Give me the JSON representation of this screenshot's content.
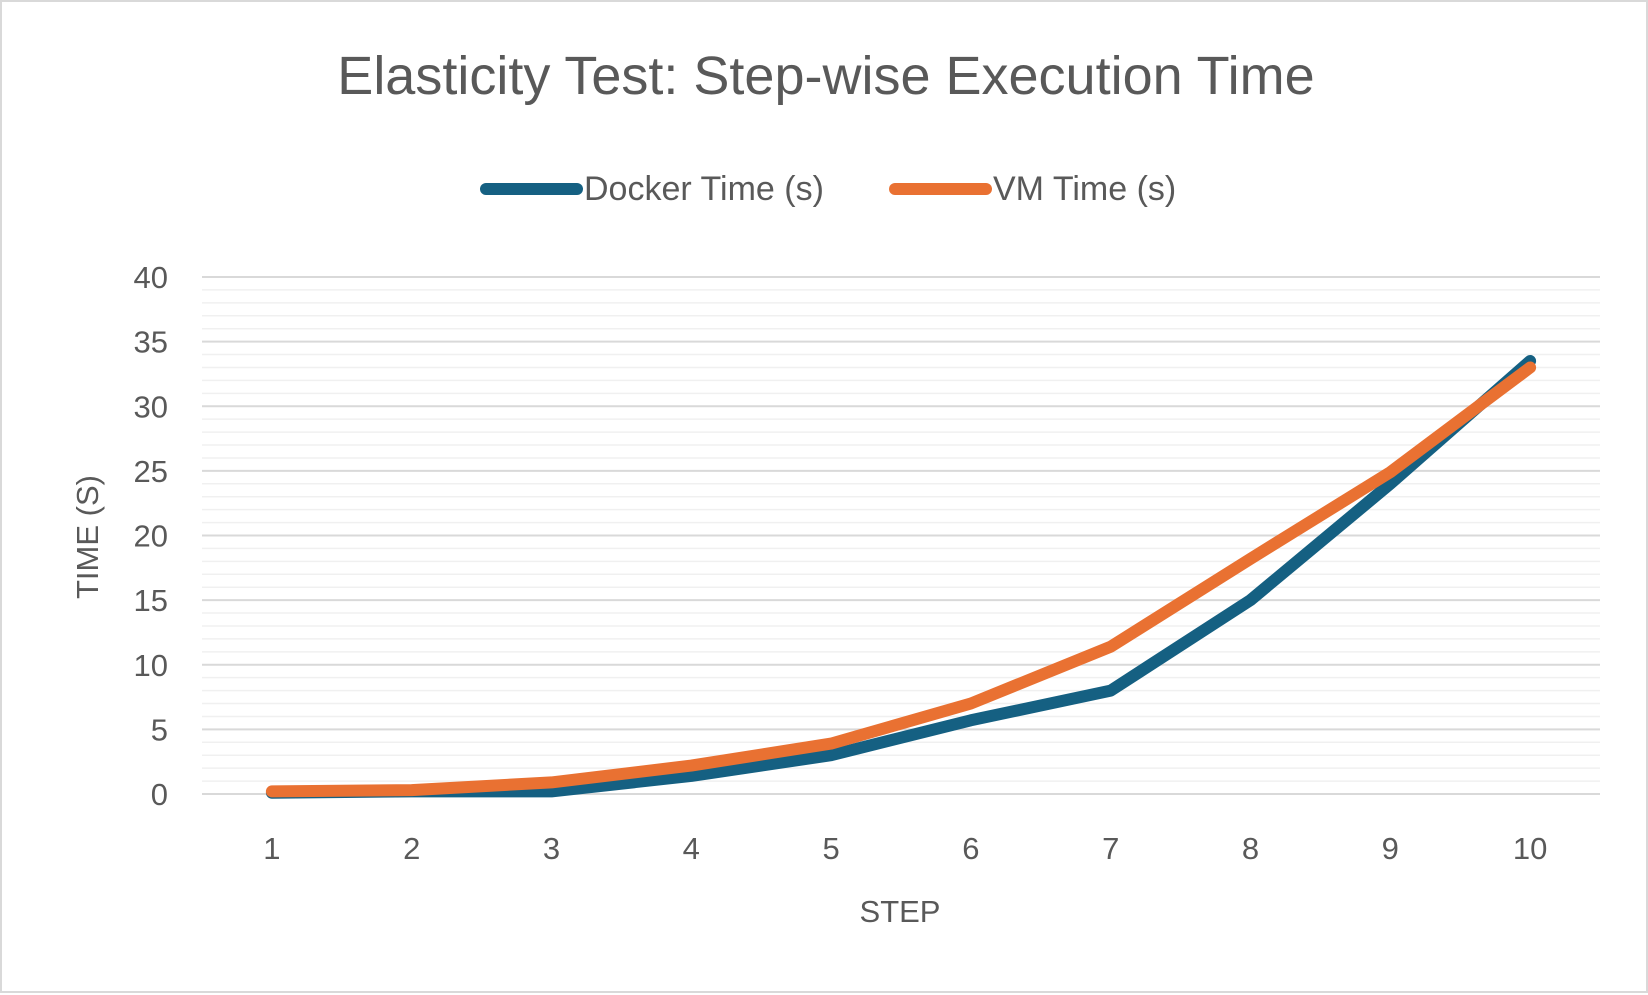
{
  "chart_data": {
    "type": "line",
    "title": "Elasticity Test: Step-wise Execution Time",
    "xlabel": "STEP",
    "ylabel": "TIME (S)",
    "x": [
      1,
      2,
      3,
      4,
      5,
      6,
      7,
      8,
      9,
      10
    ],
    "x_tick_labels": [
      "1",
      "2",
      "3",
      "4",
      "5",
      "6",
      "7",
      "8",
      "9",
      "10"
    ],
    "y_tick_labels": [
      "0",
      "5",
      "10",
      "15",
      "20",
      "25",
      "30",
      "35",
      "40"
    ],
    "ylim": [
      0,
      40
    ],
    "grid": true,
    "legend_position": "top",
    "series": [
      {
        "name": "Docker Time (s)",
        "color": "#156082",
        "values": [
          0.1,
          0.2,
          0.2,
          1.4,
          3.0,
          5.7,
          8.0,
          15.0,
          24.0,
          33.5
        ]
      },
      {
        "name": "VM Time (s)",
        "color": "#E97132",
        "values": [
          0.2,
          0.3,
          0.9,
          2.2,
          3.9,
          7.0,
          11.4,
          18.2,
          24.9,
          33.0
        ]
      }
    ]
  }
}
